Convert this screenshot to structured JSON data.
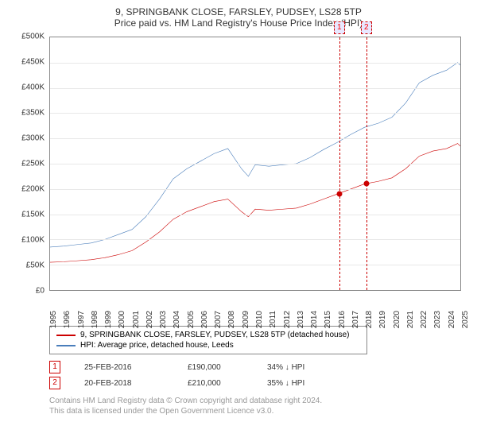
{
  "title": "9, SPRINGBANK CLOSE, FARSLEY, PUDSEY, LS28 5TP",
  "subtitle": "Price paid vs. HM Land Registry's House Price Index (HPI)",
  "chart": {
    "type": "line",
    "background_color": "#ffffff",
    "grid_color": "#e8e8e8",
    "border_color": "#888888",
    "ylim": [
      0,
      500000
    ],
    "ytick_step": 50000,
    "yticks": [
      "£0",
      "£50K",
      "£100K",
      "£150K",
      "£200K",
      "£250K",
      "£300K",
      "£350K",
      "£400K",
      "£450K",
      "£500K"
    ],
    "xlim": [
      1995,
      2025
    ],
    "xticks": [
      "1995",
      "1996",
      "1997",
      "1998",
      "1999",
      "2000",
      "2001",
      "2002",
      "2003",
      "2004",
      "2005",
      "2006",
      "2007",
      "2008",
      "2009",
      "2010",
      "2011",
      "2012",
      "2013",
      "2014",
      "2015",
      "2016",
      "2017",
      "2018",
      "2019",
      "2020",
      "2021",
      "2022",
      "2023",
      "2024",
      "2025"
    ],
    "label_fontsize": 10,
    "title_fontsize": 12,
    "series": [
      {
        "name": "price_paid",
        "label": "9, SPRINGBANK CLOSE, FARSLEY, PUDSEY, LS28 5TP (detached house)",
        "color": "#cc0000",
        "line_width": 1.5,
        "data": [
          [
            1995,
            55000
          ],
          [
            1996,
            56000
          ],
          [
            1997,
            58000
          ],
          [
            1998,
            60000
          ],
          [
            1999,
            64000
          ],
          [
            2000,
            70000
          ],
          [
            2001,
            78000
          ],
          [
            2002,
            95000
          ],
          [
            2003,
            115000
          ],
          [
            2004,
            140000
          ],
          [
            2005,
            155000
          ],
          [
            2006,
            165000
          ],
          [
            2007,
            175000
          ],
          [
            2008,
            180000
          ],
          [
            2009,
            155000
          ],
          [
            2009.5,
            145000
          ],
          [
            2010,
            160000
          ],
          [
            2011,
            158000
          ],
          [
            2012,
            160000
          ],
          [
            2013,
            162000
          ],
          [
            2014,
            170000
          ],
          [
            2015,
            180000
          ],
          [
            2016,
            190000
          ],
          [
            2017,
            200000
          ],
          [
            2018,
            210000
          ],
          [
            2019,
            215000
          ],
          [
            2020,
            222000
          ],
          [
            2021,
            240000
          ],
          [
            2022,
            265000
          ],
          [
            2023,
            275000
          ],
          [
            2024,
            280000
          ],
          [
            2024.8,
            290000
          ],
          [
            2025,
            285000
          ]
        ]
      },
      {
        "name": "hpi",
        "label": "HPI: Average price, detached house, Leeds",
        "color": "#4a7ebb",
        "line_width": 1.5,
        "data": [
          [
            1995,
            85000
          ],
          [
            1996,
            87000
          ],
          [
            1997,
            90000
          ],
          [
            1998,
            93000
          ],
          [
            1999,
            100000
          ],
          [
            2000,
            110000
          ],
          [
            2001,
            120000
          ],
          [
            2002,
            145000
          ],
          [
            2003,
            180000
          ],
          [
            2004,
            220000
          ],
          [
            2005,
            240000
          ],
          [
            2006,
            255000
          ],
          [
            2007,
            270000
          ],
          [
            2008,
            280000
          ],
          [
            2009,
            240000
          ],
          [
            2009.5,
            225000
          ],
          [
            2010,
            248000
          ],
          [
            2011,
            245000
          ],
          [
            2012,
            248000
          ],
          [
            2013,
            250000
          ],
          [
            2014,
            262000
          ],
          [
            2015,
            278000
          ],
          [
            2016,
            292000
          ],
          [
            2017,
            308000
          ],
          [
            2018,
            322000
          ],
          [
            2019,
            330000
          ],
          [
            2020,
            342000
          ],
          [
            2021,
            370000
          ],
          [
            2022,
            410000
          ],
          [
            2023,
            425000
          ],
          [
            2024,
            435000
          ],
          [
            2024.8,
            450000
          ],
          [
            2025,
            445000
          ]
        ]
      }
    ],
    "markers": [
      {
        "idx": "1",
        "x": 2016.15,
        "price_y": 190000,
        "date": "25-FEB-2016",
        "price": "£190,000",
        "diff": "34% ↓ HPI"
      },
      {
        "idx": "2",
        "x": 2018.13,
        "price_y": 210000,
        "date": "20-FEB-2018",
        "price": "£210,000",
        "diff": "35% ↓ HPI"
      }
    ],
    "marker_box_border": "#cc0000",
    "marker_box_bg": "#e8e8ff",
    "marker_dot_color": "#cc0000"
  },
  "footer": {
    "line1": "Contains HM Land Registry data © Crown copyright and database right 2024.",
    "line2": "This data is licensed under the Open Government Licence v3.0."
  }
}
